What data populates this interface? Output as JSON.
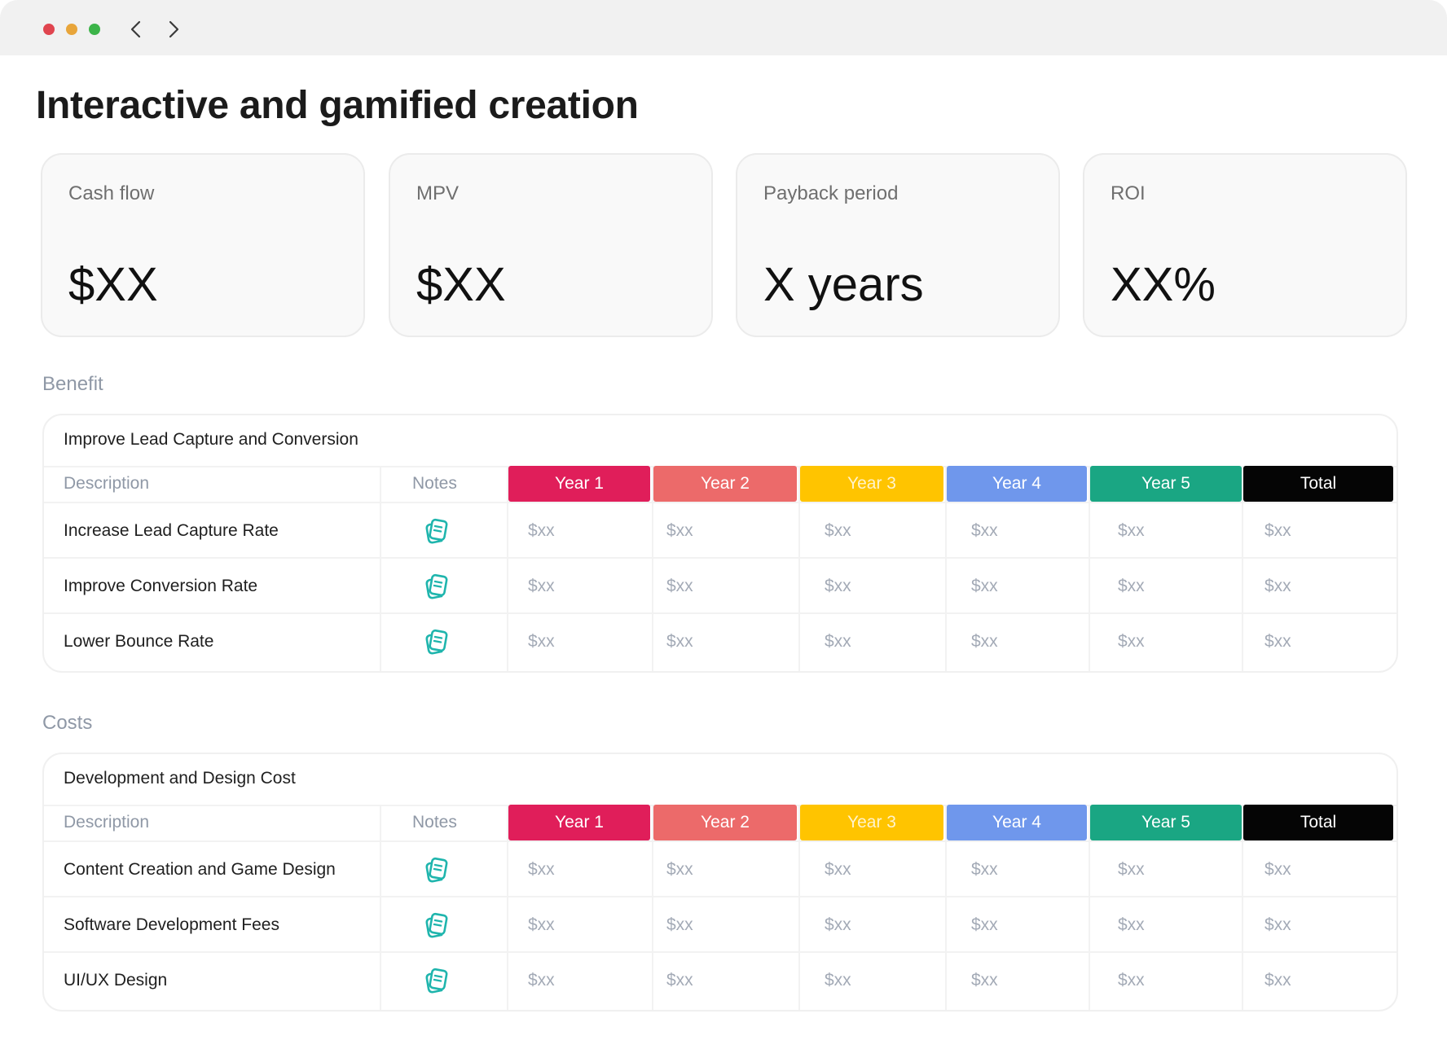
{
  "page_title": "Interactive and gamified creation",
  "kpis": [
    {
      "label": "Cash flow",
      "value": "$XX"
    },
    {
      "label": "MPV",
      "value": "$XX"
    },
    {
      "label": "Payback period",
      "value": "X years"
    },
    {
      "label": "ROI",
      "value": "XX%"
    }
  ],
  "columns": {
    "description": "Description",
    "notes": "Notes",
    "years": [
      "Year 1",
      "Year 2",
      "Year 3",
      "Year 4",
      "Year 5",
      "Total"
    ],
    "year_colors": [
      "#e01e5a",
      "#ec6a6a",
      "#ffc400",
      "#6f97ec",
      "#1aa683",
      "#050505"
    ],
    "year_text_colors": [
      "#ffffff",
      "#ffffff",
      "#fff3cc",
      "#ffffff",
      "#ffffff",
      "#ffffff"
    ]
  },
  "sections": [
    {
      "label": "Benefit",
      "table_title": "Improve Lead Capture and Conversion",
      "rows": [
        {
          "label": "Increase Lead Capture Rate",
          "values": [
            "$xx",
            "$xx",
            "$xx",
            "$xx",
            "$xx",
            "$xx"
          ]
        },
        {
          "label": "Improve Conversion Rate",
          "values": [
            "$xx",
            "$xx",
            "$xx",
            "$xx",
            "$xx",
            "$xx"
          ]
        },
        {
          "label": "Lower Bounce Rate",
          "values": [
            "$xx",
            "$xx",
            "$xx",
            "$xx",
            "$xx",
            "$xx"
          ]
        }
      ]
    },
    {
      "label": "Costs",
      "table_title": "Development and Design Cost",
      "rows": [
        {
          "label": "Content Creation and Game Design",
          "values": [
            "$xx",
            "$xx",
            "$xx",
            "$xx",
            "$xx",
            "$xx"
          ]
        },
        {
          "label": "Software Development Fees",
          "values": [
            "$xx",
            "$xx",
            "$xx",
            "$xx",
            "$xx",
            "$xx"
          ]
        },
        {
          "label": "UI/UX Design",
          "values": [
            "$xx",
            "$xx",
            "$xx",
            "$xx",
            "$xx",
            "$xx"
          ]
        }
      ]
    }
  ],
  "icons": {
    "note": "notes-document-icon",
    "back": "chevron-left-icon",
    "forward": "chevron-right-icon"
  },
  "colors": {
    "note_icon": "#1fb5ad"
  }
}
